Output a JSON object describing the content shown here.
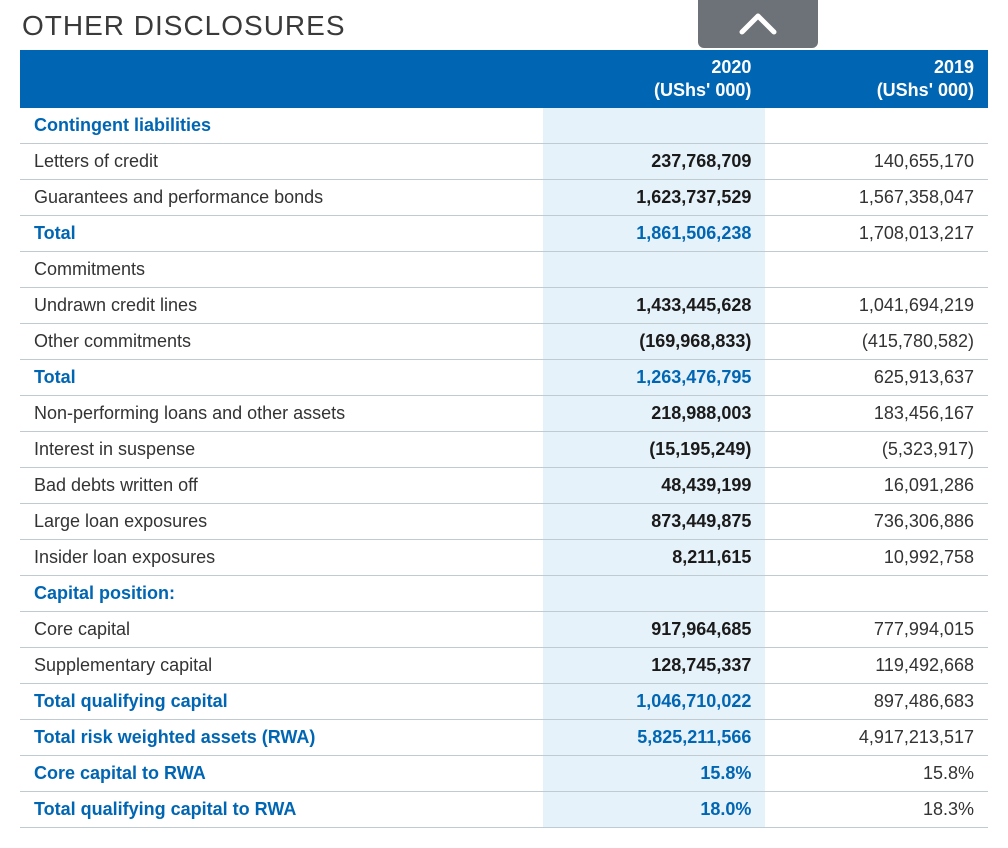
{
  "title": "OTHER DISCLOSURES",
  "columns": {
    "year_current": "2020",
    "year_prior": "2019",
    "unit": "(UShs' 000)"
  },
  "colors": {
    "header_bg": "#0066b3",
    "header_text": "#ffffff",
    "highlight_col_bg": "#e6f2fa",
    "section_text": "#0066b3",
    "row_border": "#bfcad1",
    "chevron_bg": "#6d7278",
    "chevron_stroke": "#ffffff"
  },
  "rows": [
    {
      "style": "section",
      "label": "Contingent liabilities",
      "v2020": "",
      "v2019": ""
    },
    {
      "style": "normal",
      "label": "Letters of credit",
      "v2020": "237,768,709",
      "v2019": "140,655,170"
    },
    {
      "style": "normal",
      "label": "Guarantees and performance bonds",
      "v2020": "1,623,737,529",
      "v2019": "1,567,358,047"
    },
    {
      "style": "blue-bold",
      "label": "Total",
      "v2020": "1,861,506,238",
      "v2019": "1,708,013,217"
    },
    {
      "style": "normal",
      "label": "Commitments",
      "v2020": "",
      "v2019": ""
    },
    {
      "style": "normal",
      "label": "Undrawn credit lines",
      "v2020": "1,433,445,628",
      "v2019": "1,041,694,219"
    },
    {
      "style": "normal",
      "label": "Other commitments",
      "v2020": "(169,968,833)",
      "v2019": "(415,780,582)"
    },
    {
      "style": "blue-bold",
      "label": "Total",
      "v2020": "1,263,476,795",
      "v2019": "625,913,637"
    },
    {
      "style": "normal",
      "label": "Non-performing loans and other assets",
      "v2020": "218,988,003",
      "v2019": "183,456,167"
    },
    {
      "style": "normal",
      "label": "Interest in suspense",
      "v2020": "(15,195,249)",
      "v2019": "(5,323,917)"
    },
    {
      "style": "normal",
      "label": "Bad debts written off",
      "v2020": "48,439,199",
      "v2019": "16,091,286"
    },
    {
      "style": "normal",
      "label": "Large loan exposures",
      "v2020": "873,449,875",
      "v2019": "736,306,886"
    },
    {
      "style": "normal",
      "label": "Insider loan exposures",
      "v2020": "8,211,615",
      "v2019": "10,992,758"
    },
    {
      "style": "section",
      "label": "Capital position:",
      "v2020": "",
      "v2019": ""
    },
    {
      "style": "normal",
      "label": "Core capital",
      "v2020": "917,964,685",
      "v2019": "777,994,015"
    },
    {
      "style": "normal",
      "label": "Supplementary capital",
      "v2020": "128,745,337",
      "v2019": "119,492,668"
    },
    {
      "style": "blue-bold",
      "label": "Total qualifying capital",
      "v2020": "1,046,710,022",
      "v2019": "897,486,683"
    },
    {
      "style": "blue-bold",
      "label": "Total risk weighted assets (RWA)",
      "v2020": "5,825,211,566",
      "v2019": "4,917,213,517"
    },
    {
      "style": "blue-bold",
      "label": "Core capital to RWA",
      "v2020": "15.8%",
      "v2019": "15.8%"
    },
    {
      "style": "blue-bold",
      "label": "Total qualifying capital to RWA",
      "v2020": "18.0%",
      "v2019": "18.3%"
    }
  ]
}
